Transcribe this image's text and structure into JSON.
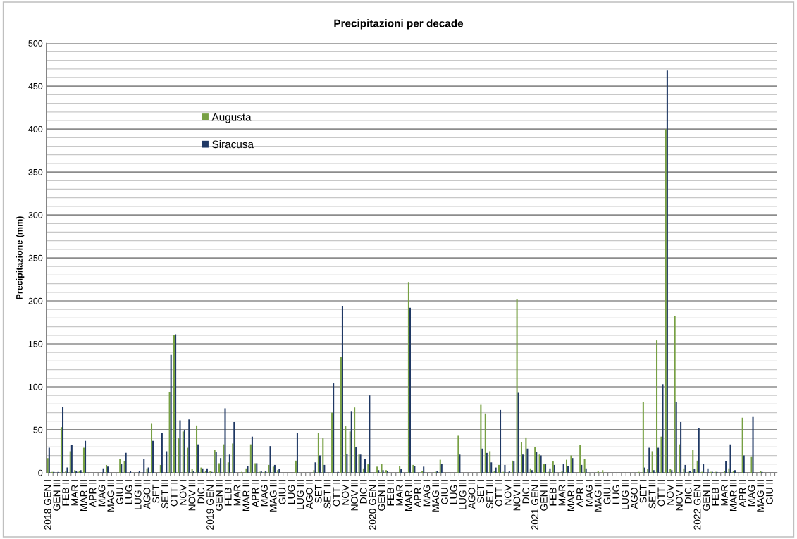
{
  "chart_data": {
    "type": "bar",
    "title": "Precipitazioni per decade",
    "ylabel": "Precipitazione (mm)",
    "categories": [
      "2018 GEN I",
      null,
      "GEN III",
      null,
      "FEB II",
      null,
      "MAR I",
      null,
      "MAR III",
      null,
      "APR II",
      null,
      "MAG I",
      null,
      "MAG III",
      null,
      "GIU II",
      null,
      "LUG I",
      null,
      "LUG III",
      null,
      "AGO II",
      null,
      "SET I",
      null,
      "SET III",
      null,
      "OTT II",
      null,
      "NOV I",
      null,
      "NOV III",
      null,
      "DIC II",
      null,
      "2019 GEN I",
      null,
      "GEN III",
      null,
      "FEB II",
      null,
      "MAR I",
      null,
      "MAR III",
      null,
      "APR II",
      null,
      "MAG I",
      null,
      "MAG III",
      null,
      "GIU II",
      null,
      "LUG I",
      null,
      "LUG III",
      null,
      "AGO II",
      null,
      "SET I",
      null,
      "SET III",
      null,
      "OTT II",
      null,
      "NOV I",
      null,
      "NOV III",
      null,
      "DIC II",
      null,
      "2020 GEN I",
      null,
      "GEN III",
      null,
      "FEB II",
      null,
      "MAR I",
      null,
      "MAR III",
      null,
      "APR II",
      null,
      "MAG I",
      null,
      "MAG III",
      null,
      "GIU II",
      null,
      "LUG I",
      null,
      "LUG III",
      null,
      "AGO II",
      null,
      "SET I",
      null,
      "SET III",
      null,
      "OTT II",
      null,
      "NOV I",
      null,
      "NOV III",
      null,
      "DIC II",
      null,
      "2021 GEN I",
      null,
      "GEN III",
      null,
      "FEB II",
      null,
      "MAR I",
      null,
      "MAR III",
      null,
      "APR II",
      null,
      "MAG I",
      null,
      "MAG III",
      null,
      "GIU II",
      null,
      "LUG I",
      null,
      "LUG III",
      null,
      "AGO II",
      null,
      "SET I",
      null,
      "SET III",
      null,
      "OTT II",
      null,
      "NOV I",
      null,
      "NOV III",
      null,
      "DIC II",
      null,
      "2022 GEN I",
      null,
      "GEN III",
      null,
      "FEB II",
      null,
      "MAR I",
      null,
      "MAR III",
      null,
      "APR II",
      null,
      "MAG I",
      null,
      "MAG III",
      null,
      "GIU II",
      null
    ],
    "series": [
      {
        "name": "Augusta",
        "color": "#77a043",
        "values": [
          17,
          1,
          0,
          53,
          2,
          25,
          3,
          2,
          29,
          0,
          0,
          0,
          0,
          9,
          0,
          0,
          16,
          13,
          0,
          0,
          0,
          0,
          5,
          57,
          0,
          9,
          0,
          94,
          160,
          41,
          48,
          29,
          4,
          55,
          6,
          2,
          2,
          27,
          11,
          33,
          12,
          34,
          0,
          1,
          5,
          33,
          11,
          1,
          1,
          9,
          7,
          3,
          0,
          0,
          0,
          14,
          0,
          0,
          0,
          3,
          46,
          40,
          0,
          70,
          0,
          135,
          54,
          48,
          76,
          21,
          5,
          10,
          0,
          7,
          10,
          3,
          0,
          0,
          8,
          0,
          222,
          9,
          0,
          2,
          0,
          0,
          1,
          15,
          0,
          0,
          0,
          43,
          0,
          0,
          0,
          0,
          79,
          69,
          25,
          2,
          9,
          1,
          0,
          14,
          202,
          36,
          41,
          5,
          30,
          21,
          10,
          1,
          13,
          0,
          2,
          15,
          20,
          0,
          32,
          16,
          0,
          0,
          2,
          3,
          0,
          0,
          0,
          0,
          0,
          0,
          0,
          1,
          82,
          4,
          25,
          154,
          42,
          400,
          4,
          182,
          33,
          5,
          1,
          27,
          14,
          1,
          0,
          1,
          1,
          0,
          2,
          5,
          2,
          0,
          64,
          0,
          19,
          0,
          2,
          0,
          0,
          0
        ]
      },
      {
        "name": "Siracusa",
        "color": "#1f3864",
        "values": [
          29,
          1,
          1,
          77,
          6,
          32,
          2,
          3,
          37,
          0,
          0,
          0,
          5,
          7,
          0,
          0,
          10,
          23,
          2,
          0,
          2,
          16,
          6,
          37,
          0,
          46,
          25,
          137,
          161,
          61,
          50,
          62,
          2,
          33,
          5,
          5,
          1,
          24,
          17,
          75,
          21,
          59,
          0,
          0,
          8,
          42,
          11,
          2,
          2,
          31,
          9,
          4,
          0,
          0,
          0,
          46,
          0,
          0,
          0,
          12,
          20,
          9,
          0,
          104,
          1,
          194,
          22,
          71,
          30,
          21,
          16,
          90,
          0,
          3,
          3,
          2,
          0,
          0,
          4,
          0,
          192,
          8,
          0,
          7,
          0,
          0,
          2,
          10,
          0,
          0,
          0,
          21,
          0,
          0,
          0,
          0,
          28,
          23,
          12,
          6,
          73,
          9,
          2,
          13,
          93,
          21,
          28,
          3,
          24,
          20,
          10,
          5,
          9,
          0,
          10,
          8,
          17,
          0,
          9,
          5,
          0,
          0,
          0,
          0,
          0,
          0,
          0,
          0,
          0,
          0,
          0,
          0,
          6,
          29,
          3,
          29,
          103,
          468,
          3,
          82,
          59,
          9,
          2,
          4,
          52,
          10,
          5,
          1,
          1,
          0,
          13,
          33,
          3,
          0,
          20,
          0,
          65,
          0,
          1,
          0,
          0,
          0
        ]
      }
    ],
    "ylim": [
      0,
      500
    ],
    "yticks": [
      0,
      {
        "value": 10,
        "label": null
      },
      {
        "value": 20,
        "label": null
      },
      {
        "value": 30,
        "label": null
      },
      {
        "value": 40,
        "label": null
      },
      50,
      {
        "value": 60,
        "label": null
      },
      {
        "value": 70,
        "label": null
      },
      {
        "value": 80,
        "label": null
      },
      {
        "value": 90,
        "label": null
      },
      100,
      {
        "value": 110,
        "label": null
      },
      {
        "value": 120,
        "label": null
      },
      {
        "value": 130,
        "label": null
      },
      {
        "value": 140,
        "label": null
      },
      150,
      {
        "value": 160,
        "label": null
      },
      {
        "value": 170,
        "label": null
      },
      {
        "value": 180,
        "label": null
      },
      {
        "value": 190,
        "label": null
      },
      200,
      {
        "value": 210,
        "label": null
      },
      {
        "value": 220,
        "label": null
      },
      {
        "value": 230,
        "label": null
      },
      {
        "value": 240,
        "label": null
      },
      250,
      {
        "value": 260,
        "label": null
      },
      {
        "value": 270,
        "label": null
      },
      {
        "value": 280,
        "label": null
      },
      {
        "value": 290,
        "label": null
      },
      300,
      {
        "value": 310,
        "label": null
      },
      {
        "value": 320,
        "label": null
      },
      {
        "value": 330,
        "label": null
      },
      {
        "value": 340,
        "label": null
      },
      350,
      {
        "value": 360,
        "label": null
      },
      {
        "value": 370,
        "label": null
      },
      {
        "value": 380,
        "label": null
      },
      {
        "value": 390,
        "label": null
      },
      400,
      {
        "value": 410,
        "label": null
      },
      {
        "value": 420,
        "label": null
      },
      {
        "value": 430,
        "label": null
      },
      {
        "value": 440,
        "label": null
      },
      450,
      {
        "value": 460,
        "label": null
      },
      {
        "value": 470,
        "label": null
      },
      {
        "value": 480,
        "label": null
      },
      {
        "value": 490,
        "label": null
      },
      500
    ],
    "grid": "y",
    "legend": "top left"
  }
}
